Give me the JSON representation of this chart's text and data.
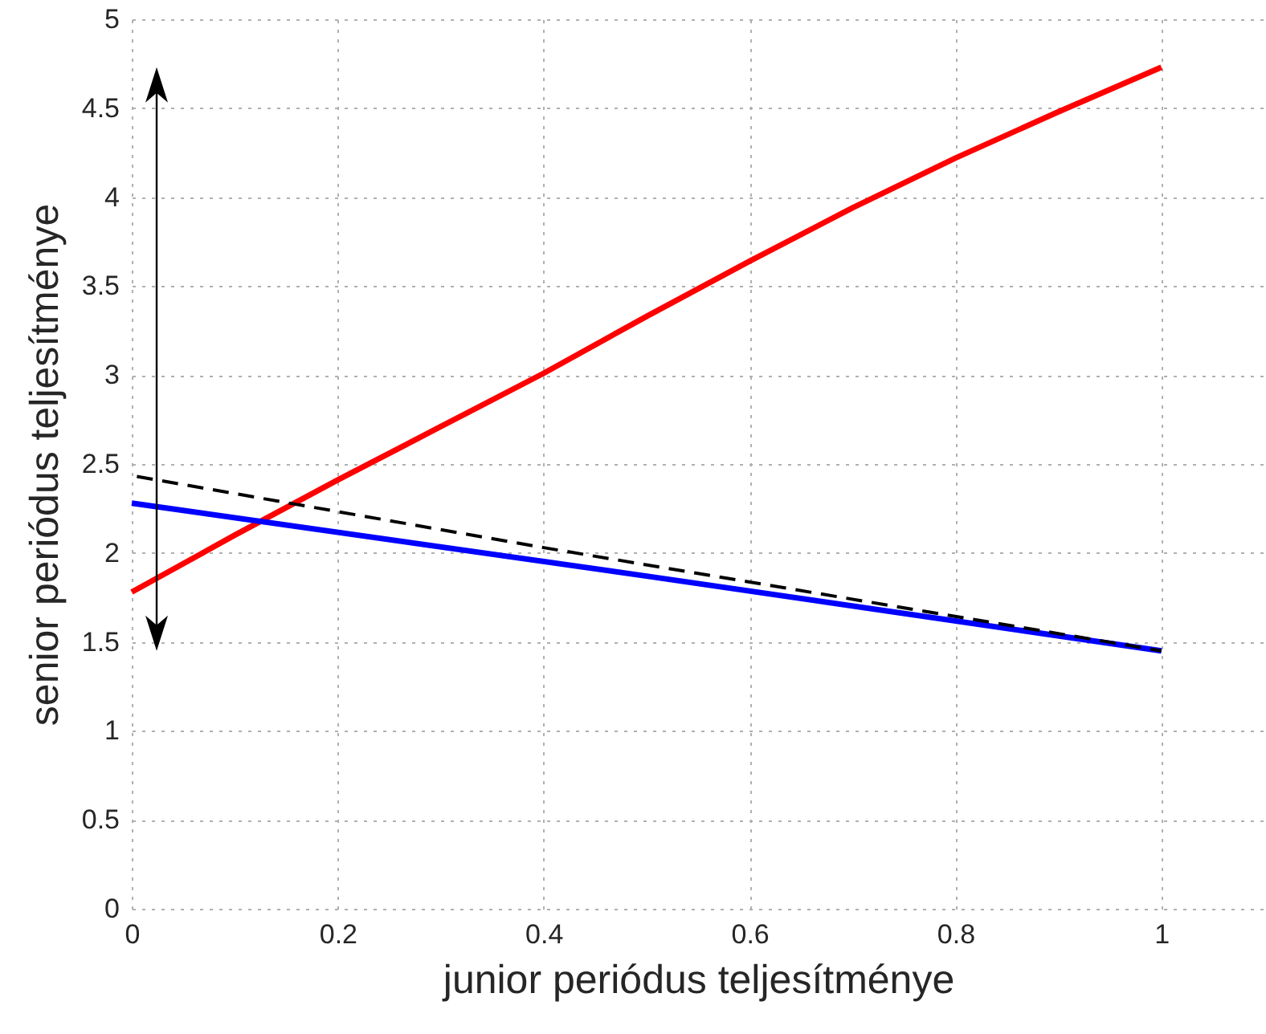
{
  "chart_data": {
    "type": "line",
    "xlabel": "junior periódus teljesítménye",
    "ylabel": "senior periódus teljesítménye",
    "xlim": [
      0,
      1.1
    ],
    "xticks": [
      0,
      0.2,
      0.4,
      0.6,
      0.8,
      1
    ],
    "ylim": [
      0,
      5
    ],
    "yticks": [
      0,
      0.5,
      1,
      1.5,
      2,
      2.5,
      3,
      3.5,
      4,
      4.5,
      5
    ],
    "grid": true,
    "series": [
      {
        "color": "#ff0000",
        "line_style": "solid",
        "x": [
          0,
          0.1,
          0.2,
          0.3,
          0.4,
          0.5,
          0.6,
          0.7,
          0.8,
          0.9,
          1
        ],
        "values": [
          1.78,
          2.1,
          2.41,
          2.71,
          3.01,
          3.33,
          3.64,
          3.94,
          4.22,
          4.48,
          4.73
        ]
      },
      {
        "color": "#0000ff",
        "line_style": "solid",
        "x": [
          0,
          0.5,
          1
        ],
        "values": [
          2.28,
          1.87,
          1.45
        ]
      },
      {
        "color": "#000000",
        "line_style": "dashed",
        "x": [
          0.005,
          0.4,
          1
        ],
        "values": [
          2.43,
          2.03,
          1.45
        ]
      }
    ]
  }
}
